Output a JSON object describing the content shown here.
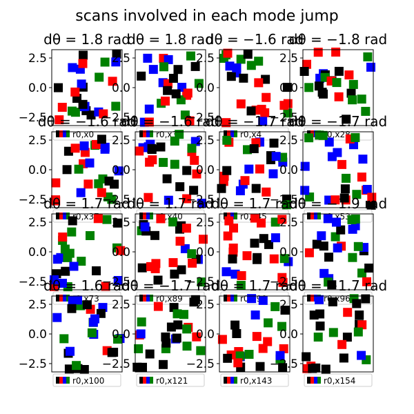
{
  "figure": {
    "suptitle": "scans involved in each mode jump"
  },
  "colors": {
    "black": "#000000",
    "red": "#ff0000",
    "blue": "#0000ff",
    "green": "#008000"
  },
  "chart_data": [
    {
      "type": "scatter",
      "title": "$d\\theta = 1.8$ rad",
      "ticks": [
        "2.5",
        "0.0",
        "−2.5"
      ],
      "axis_label": "r0,x0",
      "ylim": [
        -3.2,
        3.2
      ],
      "marker": "square",
      "grid": false
    },
    {
      "type": "scatter",
      "title": "$d\\theta = 1.8$ rad",
      "ticks": [
        "2.5",
        "0.0",
        "−2.5"
      ],
      "axis_label": "r0,x3",
      "ylim": [
        -3.2,
        3.2
      ],
      "marker": "square",
      "grid": false
    },
    {
      "type": "scatter",
      "title": "$d\\theta = -1.6$ rad",
      "ticks": [
        "2.5",
        "0.0",
        "−2.5"
      ],
      "axis_label": "r0,x4",
      "ylim": [
        -3.2,
        3.2
      ],
      "marker": "square",
      "grid": false
    },
    {
      "type": "scatter",
      "title": "$d\\theta = -1.8$ rad",
      "ticks": [
        "2.5",
        "0.0",
        "−2.5"
      ],
      "axis_label": "r0,x28",
      "ylim": [
        -3.2,
        3.2
      ],
      "marker": "square",
      "grid": false
    },
    {
      "type": "scatter",
      "title": "$d\\theta = -1.6$ rad",
      "ticks": [
        "2.5",
        "0.0",
        "−2.5"
      ],
      "axis_label": "r0,x37",
      "ylim": [
        -3.2,
        3.2
      ],
      "marker": "square",
      "grid": false
    },
    {
      "type": "scatter",
      "title": "$d\\theta = -1.6$ rad",
      "ticks": [
        "2.5",
        "0.0",
        "−2.5"
      ],
      "axis_label": "r0,x40",
      "ylim": [
        -3.2,
        3.2
      ],
      "marker": "square",
      "grid": false
    },
    {
      "type": "scatter",
      "title": "$d\\theta = -1.7$ rad",
      "ticks": [
        "2.5",
        "0.0",
        "−2.5"
      ],
      "axis_label": "r0,x45",
      "ylim": [
        -3.2,
        3.2
      ],
      "marker": "square",
      "grid": false
    },
    {
      "type": "scatter",
      "title": "$d\\theta = -1.7$ rad",
      "ticks": [
        "2.5",
        "0.0",
        "−2.5"
      ],
      "axis_label": "r0,x53",
      "ylim": [
        -3.2,
        3.2
      ],
      "marker": "square",
      "grid": false
    },
    {
      "type": "scatter",
      "title": "$d\\theta = 1.7$ rad",
      "ticks": [
        "2.5",
        "0.0",
        "−2.5"
      ],
      "axis_label": "r0,x73",
      "ylim": [
        -3.2,
        3.2
      ],
      "marker": "square",
      "grid": false
    },
    {
      "type": "scatter",
      "title": "$d\\theta = 1.7$ rad",
      "ticks": [
        "2.5",
        "0.0",
        "−2.5"
      ],
      "axis_label": "r0,x89",
      "ylim": [
        -3.2,
        3.2
      ],
      "marker": "square",
      "grid": false
    },
    {
      "type": "scatter",
      "title": "$d\\theta = 1.7$ rad",
      "ticks": [
        "2.5",
        "0.0",
        "−2.5"
      ],
      "axis_label": "r0,x90",
      "ylim": [
        -3.2,
        3.2
      ],
      "marker": "square",
      "grid": false
    },
    {
      "type": "scatter",
      "title": "$d\\theta = -1.9$ rad",
      "ticks": [
        "2.5",
        "0.0",
        "−2.5"
      ],
      "axis_label": "r0,x96",
      "ylim": [
        -3.2,
        3.2
      ],
      "marker": "square",
      "grid": false
    },
    {
      "type": "scatter",
      "title": "$d\\theta = 1.6$ rad",
      "ticks": [
        "2.5",
        "0.0",
        "−2.5"
      ],
      "axis_label": "r0,x100",
      "ylim": [
        -3.2,
        3.2
      ],
      "marker": "square",
      "grid": false
    },
    {
      "type": "scatter",
      "title": "$d\\theta = -1.7$ rad",
      "ticks": [
        "2.5",
        "0.0",
        "−2.5"
      ],
      "axis_label": "r0,x121",
      "ylim": [
        -3.2,
        3.2
      ],
      "marker": "square",
      "grid": false
    },
    {
      "type": "scatter",
      "title": "$d\\theta = 1.7$ rad",
      "ticks": [
        "2.5",
        "0.0",
        "−2.5"
      ],
      "axis_label": "r0,x143",
      "ylim": [
        -3.2,
        3.2
      ],
      "marker": "square",
      "grid": false
    },
    {
      "type": "scatter",
      "title": "$d\\theta = -1.7$ rad",
      "ticks": [
        "2.5",
        "0.0",
        "−2.5"
      ],
      "axis_label": "r0,x154",
      "ylim": [
        -3.2,
        3.2
      ],
      "marker": "square",
      "grid": false
    }
  ]
}
